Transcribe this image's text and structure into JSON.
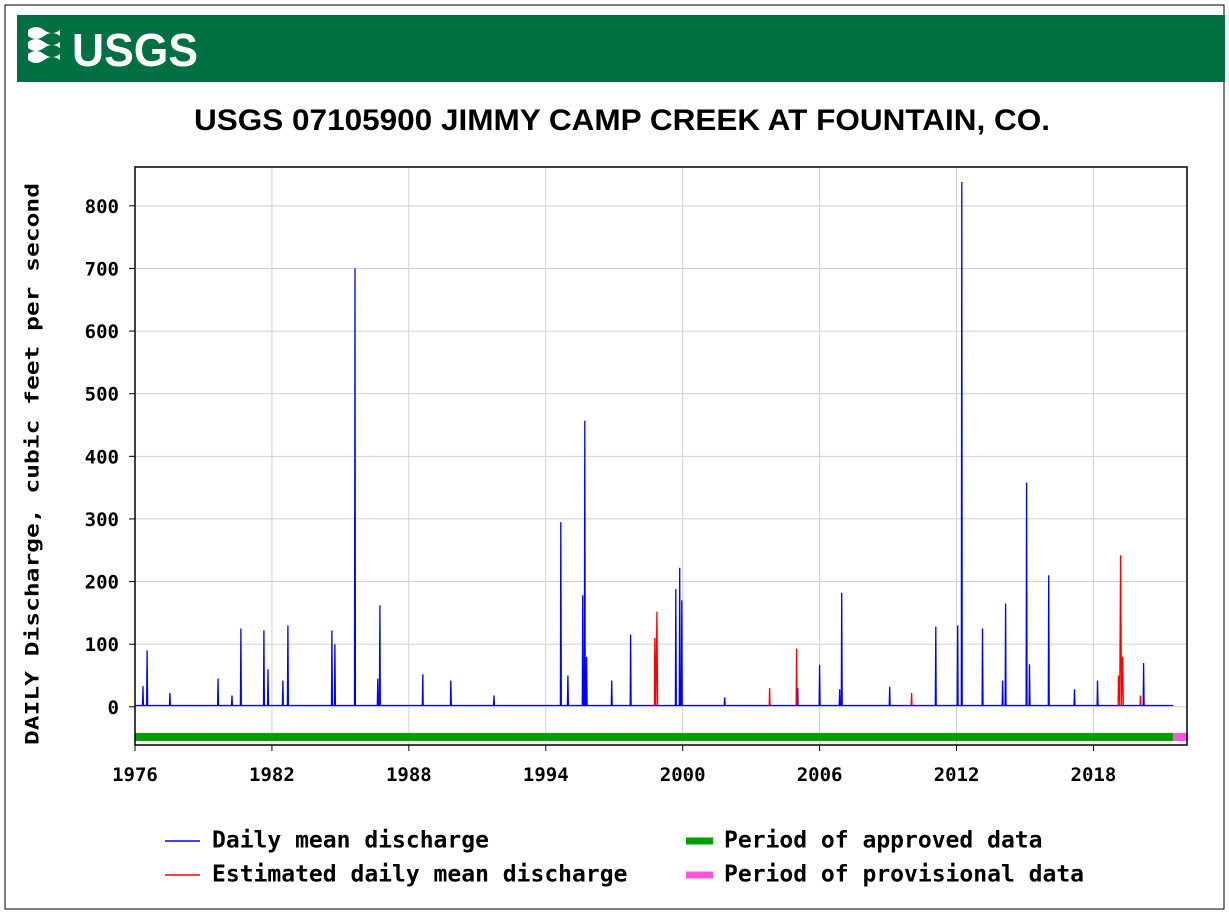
{
  "logo": "USGS",
  "chart_data": {
    "type": "line",
    "title": "USGS 07105900 JIMMY CAMP CREEK AT FOUNTAIN, CO.",
    "ylabel": "DAILY Discharge, cubic feet per second",
    "xlim": [
      1976,
      2022.1
    ],
    "xticks": [
      1976,
      1982,
      1988,
      1994,
      2000,
      2006,
      2012,
      2018
    ],
    "ylim": [
      -61,
      862
    ],
    "yticks": [
      0,
      100,
      200,
      300,
      400,
      500,
      600,
      700,
      800
    ],
    "grid": true,
    "series": [
      {
        "name": "Daily mean discharge",
        "color": "#0000ff",
        "x": [
          1976,
          1976.33,
          1976.35,
          1976.37,
          1976.51,
          1976.53,
          1976.55,
          1977.51,
          1977.53,
          1977.55,
          1979.62,
          1979.64,
          1979.66,
          1980.23,
          1980.25,
          1980.27,
          1980.62,
          1980.64,
          1980.66,
          1981.63,
          1981.65,
          1981.67,
          1981.81,
          1981.83,
          1981.85,
          1982.46,
          1982.48,
          1982.5,
          1982.68,
          1982.7,
          1982.72,
          1984.61,
          1984.63,
          1984.65,
          1984.74,
          1984.76,
          1984.78,
          1985.62,
          1985.64,
          1985.66,
          1986.62,
          1986.64,
          1986.66,
          1986.71,
          1986.73,
          1986.75,
          1988.59,
          1988.61,
          1988.63,
          1989.82,
          1989.84,
          1989.86,
          1991.71,
          1991.73,
          1991.75,
          1994.64,
          1994.66,
          1994.68,
          1994.95,
          1994.97,
          1994.99,
          1995.6,
          1995.62,
          1995.64,
          1995.69,
          1995.71,
          1995.73,
          1995.77,
          1995.79,
          1995.81,
          1996.87,
          1996.89,
          1996.91,
          1997.7,
          1997.72,
          1997.74,
          1999.68,
          1999.7,
          1999.72,
          1999.85,
          1999.87,
          1999.89,
          1999.94,
          1999.96,
          1999.98,
          2001.82,
          2001.84,
          2001.86,
          2005.02,
          2005.04,
          2005.06,
          2005.98,
          2006,
          2006.02,
          2006.86,
          2006.88,
          2006.9,
          2006.95,
          2006.97,
          2006.99,
          2009.05,
          2009.07,
          2009.09,
          2011.07,
          2011.09,
          2011.11,
          2012.03,
          2012.05,
          2012.07,
          2012.21,
          2012.23,
          2012.25,
          2013.12,
          2013.14,
          2013.16,
          2014,
          2014.02,
          2014.04,
          2014.13,
          2014.15,
          2014.17,
          2015.05,
          2015.07,
          2015.09,
          2015.18,
          2015.2,
          2015.22,
          2016.02,
          2016.04,
          2016.06,
          2017.15,
          2017.17,
          2017.19,
          2018.16,
          2018.18,
          2018.2,
          2020.18,
          2020.2,
          2020.22,
          2021.5
        ],
        "values": [
          2,
          2,
          33,
          2,
          2,
          90,
          2,
          2,
          22,
          2,
          2,
          45,
          2,
          2,
          18,
          2,
          2,
          125,
          2,
          2,
          122,
          2,
          2,
          60,
          2,
          2,
          42,
          2,
          2,
          130,
          2,
          2,
          122,
          2,
          2,
          100,
          2,
          2,
          700,
          2,
          2,
          45,
          2,
          2,
          162,
          2,
          2,
          52,
          2,
          2,
          42,
          2,
          2,
          18,
          2,
          2,
          295,
          2,
          2,
          50,
          2,
          2,
          178,
          2,
          2,
          457,
          2,
          2,
          80,
          2,
          2,
          42,
          2,
          2,
          115,
          2,
          2,
          188,
          2,
          2,
          222,
          2,
          2,
          170,
          2,
          2,
          15,
          2,
          2,
          30,
          2,
          2,
          67,
          2,
          2,
          28,
          2,
          2,
          182,
          2,
          2,
          32,
          2,
          2,
          128,
          2,
          2,
          130,
          2,
          2,
          838,
          2,
          2,
          125,
          2,
          2,
          42,
          2,
          2,
          165,
          2,
          2,
          358,
          2,
          2,
          68,
          2,
          2,
          210,
          2,
          2,
          28,
          2,
          2,
          42,
          2,
          2,
          70,
          2,
          2
        ]
      },
      {
        "name": "Estimated daily mean discharge",
        "color": "#ff0000",
        "x": [
          1998.76,
          1998.78,
          1998.82,
          1998.87,
          1998.9,
          1999,
          2003.79,
          2003.81,
          2003.83,
          2004,
          2004.97,
          2004.99,
          2005.01,
          2005.5,
          2010.01,
          2010.03,
          2010.05,
          2011,
          2019.08,
          2019.1,
          2019.15,
          2019.19,
          2019.23,
          2019.28,
          2019.31,
          2019.5,
          2020.04,
          2020.06,
          2020.08
        ],
        "values": [
          2,
          110,
          2,
          152,
          2,
          null,
          2,
          30,
          2,
          null,
          2,
          93,
          2,
          null,
          2,
          22,
          2,
          null,
          2,
          50,
          2,
          242,
          2,
          80,
          2,
          null,
          2,
          18,
          2
        ]
      }
    ],
    "periods": [
      {
        "name": "Period of approved data",
        "color": "#00a000",
        "range": [
          1976,
          2021.5
        ]
      },
      {
        "name": "Period of provisional data",
        "color": "#ff55dd",
        "range": [
          2021.5,
          2022.1
        ]
      }
    ]
  }
}
